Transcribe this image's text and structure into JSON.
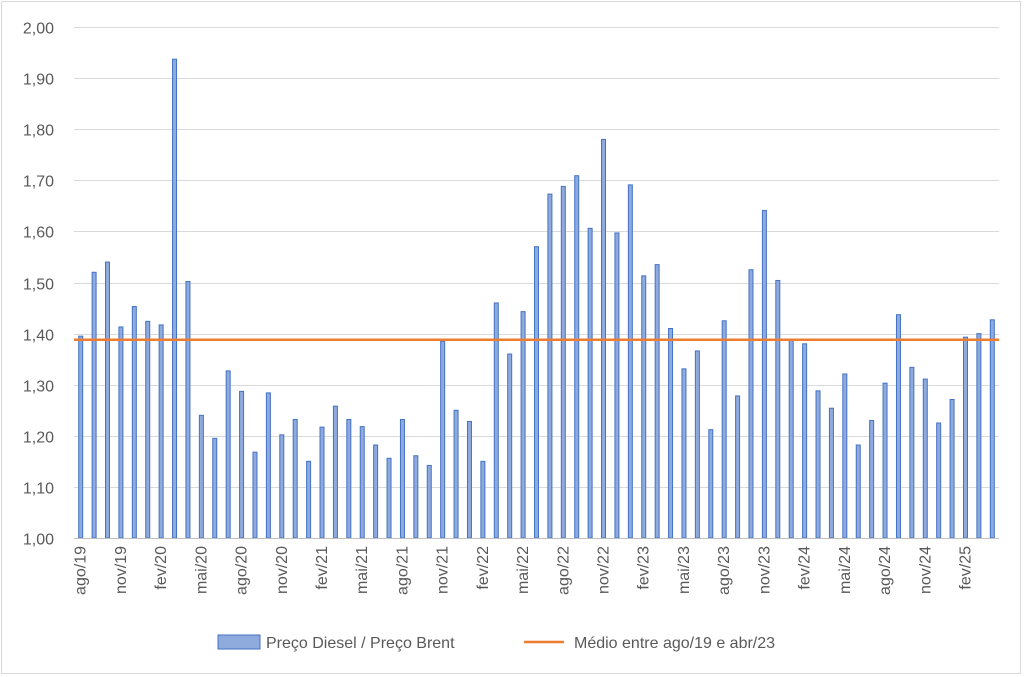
{
  "chart_data": {
    "type": "bar",
    "title": "",
    "xlabel": "",
    "ylabel": "",
    "ylim": [
      1.0,
      2.0
    ],
    "y_ticks": [
      "1,00",
      "1,10",
      "1,20",
      "1,30",
      "1,40",
      "1,50",
      "1,60",
      "1,70",
      "1,80",
      "1,90",
      "2,00"
    ],
    "y_tick_values": [
      1.0,
      1.1,
      1.2,
      1.3,
      1.4,
      1.5,
      1.6,
      1.7,
      1.8,
      1.9,
      2.0
    ],
    "grid": true,
    "legend_position": "bottom",
    "x_labels": [
      {
        "label": "ago/19",
        "index": 0
      },
      {
        "label": "nov/19",
        "index": 3
      },
      {
        "label": "fev/20",
        "index": 6
      },
      {
        "label": "mai/20",
        "index": 9
      },
      {
        "label": "ago/20",
        "index": 12
      },
      {
        "label": "nov/20",
        "index": 15
      },
      {
        "label": "fev/21",
        "index": 18
      },
      {
        "label": "mai/21",
        "index": 21
      },
      {
        "label": "ago/21",
        "index": 24
      },
      {
        "label": "nov/21",
        "index": 27
      },
      {
        "label": "fev/22",
        "index": 30
      },
      {
        "label": "mai/22",
        "index": 33
      },
      {
        "label": "ago/22",
        "index": 36
      },
      {
        "label": "nov/22",
        "index": 39
      },
      {
        "label": "fev/23",
        "index": 42
      },
      {
        "label": "mai/23",
        "index": 45
      },
      {
        "label": "ago/23",
        "index": 48
      },
      {
        "label": "nov/23",
        "index": 51
      },
      {
        "label": "fev/24",
        "index": 54
      },
      {
        "label": "mai/24",
        "index": 57
      },
      {
        "label": "ago/24",
        "index": 60
      },
      {
        "label": "nov/24",
        "index": 63
      },
      {
        "label": "fev/25",
        "index": 66
      }
    ],
    "series": [
      {
        "name": "Preço Diesel / Preço Brent",
        "kind": "bar",
        "color": "#8faadc",
        "border": "#4472c4",
        "values": [
          1.395,
          1.52,
          1.54,
          1.413,
          1.453,
          1.424,
          1.417,
          1.937,
          1.502,
          1.24,
          1.195,
          1.327,
          1.287,
          1.168,
          1.284,
          1.202,
          1.232,
          1.15,
          1.217,
          1.258,
          1.232,
          1.218,
          1.182,
          1.156,
          1.232,
          1.161,
          1.142,
          1.385,
          1.25,
          1.228,
          1.15,
          1.46,
          1.36,
          1.443,
          1.57,
          1.673,
          1.688,
          1.709,
          1.606,
          1.78,
          1.597,
          1.691,
          1.513,
          1.535,
          1.41,
          1.331,
          1.366,
          1.212,
          1.425,
          1.278,
          1.525,
          1.641,
          1.504,
          1.387,
          1.38,
          1.288,
          1.254,
          1.321,
          1.182,
          1.23,
          1.303,
          1.437,
          1.334,
          1.311,
          1.225,
          1.271,
          1.393,
          1.4,
          1.427
        ]
      },
      {
        "name": "Médio entre ago/19 e abr/23",
        "kind": "line",
        "color": "#ed7d31",
        "value": 1.388
      }
    ]
  }
}
